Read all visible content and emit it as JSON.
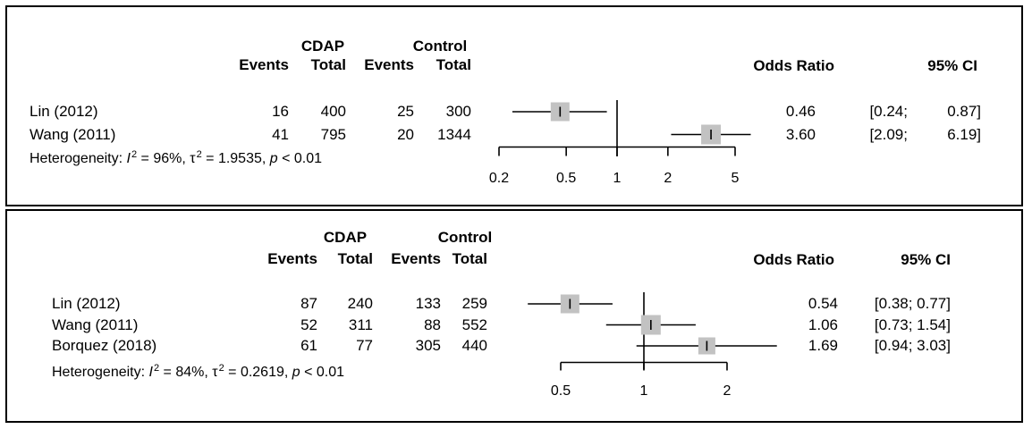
{
  "colors": {
    "square_fill": "#c2c2c2",
    "line": "#000000",
    "border": "#000000"
  },
  "panels": [
    {
      "group1_label": "CDAP",
      "group2_label": "Control",
      "col_events1": "Events",
      "col_total1": "Total",
      "col_events2": "Events",
      "col_total2": "Total",
      "or_header": "Odds Ratio",
      "ci_header": "95% CI",
      "studies": [
        {
          "label": "Lin (2012)",
          "cdap_events": "16",
          "cdap_total": "400",
          "control_events": "25",
          "control_total": "300",
          "or": "0.46",
          "ci_low_part": "[0.24;",
          "ci_high_part": "0.87]"
        },
        {
          "label": "Wang (2011)",
          "cdap_events": "41",
          "cdap_total": "795",
          "control_events": "20",
          "control_total": "1344",
          "or": "3.60",
          "ci_low_part": "[2.09;",
          "ci_high_part": "6.19]"
        }
      ],
      "het": {
        "prefix": "Heterogeneity: ",
        "i_sym": "I",
        "sup": "2",
        "i_eq": " = 96%, ",
        "tau_sym": "τ",
        "tau_eq": " = 1.9535, ",
        "p_sym": "p",
        "p_eq": " < 0.01"
      },
      "axis_tick_labels": [
        "0.2",
        "0.5",
        "1",
        "2",
        "5"
      ]
    },
    {
      "group1_label": "CDAP",
      "group2_label": "Control",
      "col_events1": "Events",
      "col_total1": "Total",
      "col_events2": "Events",
      "col_total2": "Total",
      "or_header": "Odds Ratio",
      "ci_header": "95% CI",
      "studies": [
        {
          "label": "Lin (2012)",
          "cdap_events": "87",
          "cdap_total": "240",
          "control_events": "133",
          "control_total": "259",
          "or": "0.54",
          "ci": "[0.38; 0.77]"
        },
        {
          "label": "Wang (2011)",
          "cdap_events": "52",
          "cdap_total": "311",
          "control_events": "88",
          "control_total": "552",
          "or": "1.06",
          "ci": "[0.73; 1.54]"
        },
        {
          "label": "Borquez (2018)",
          "cdap_events": "61",
          "cdap_total": "77",
          "control_events": "305",
          "control_total": "440",
          "or": "1.69",
          "ci": "[0.94; 3.03]"
        }
      ],
      "het": {
        "prefix": "Heterogeneity: ",
        "i_sym": "I",
        "sup": "2",
        "i_eq": " = 84%, ",
        "tau_sym": "τ",
        "tau_eq": " = 0.2619, ",
        "p_sym": "p",
        "p_eq": " < 0.01"
      },
      "axis_tick_labels": [
        "0.5",
        "1",
        "2"
      ]
    }
  ],
  "chart_data": [
    {
      "type": "forest",
      "x_scale": "log",
      "ref_line": 1,
      "x_ticks": [
        0.2,
        0.5,
        1,
        2,
        5
      ],
      "effect_measure": "Odds Ratio",
      "studies": [
        {
          "label": "Lin (2012)",
          "cdap_events": 16,
          "cdap_total": 400,
          "control_events": 25,
          "control_total": 300,
          "or": 0.46,
          "ci": [
            0.24,
            0.87
          ],
          "square": 21
        },
        {
          "label": "Wang (2011)",
          "cdap_events": 41,
          "cdap_total": 795,
          "control_events": 20,
          "control_total": 1344,
          "or": 3.6,
          "ci": [
            2.09,
            6.19
          ],
          "square": 22
        }
      ],
      "heterogeneity": {
        "I2_pct": 96,
        "tau2": 1.9535,
        "p": "< 0.01"
      }
    },
    {
      "type": "forest",
      "x_scale": "log",
      "ref_line": 1,
      "x_ticks": [
        0.5,
        1,
        2
      ],
      "effect_measure": "Odds Ratio",
      "studies": [
        {
          "label": "Lin (2012)",
          "cdap_events": 87,
          "cdap_total": 240,
          "control_events": 133,
          "control_total": 259,
          "or": 0.54,
          "ci": [
            0.38,
            0.77
          ],
          "square": 21
        },
        {
          "label": "Wang (2011)",
          "cdap_events": 52,
          "cdap_total": 311,
          "control_events": 88,
          "control_total": 552,
          "or": 1.06,
          "ci": [
            0.73,
            1.54
          ],
          "square": 22
        },
        {
          "label": "Borquez (2018)",
          "cdap_events": 61,
          "cdap_total": 77,
          "control_events": 305,
          "control_total": 440,
          "or": 1.69,
          "ci": [
            0.94,
            3.03
          ],
          "square": 19
        }
      ],
      "heterogeneity": {
        "I2_pct": 84,
        "tau2": 0.2619,
        "p": "< 0.01"
      }
    }
  ]
}
